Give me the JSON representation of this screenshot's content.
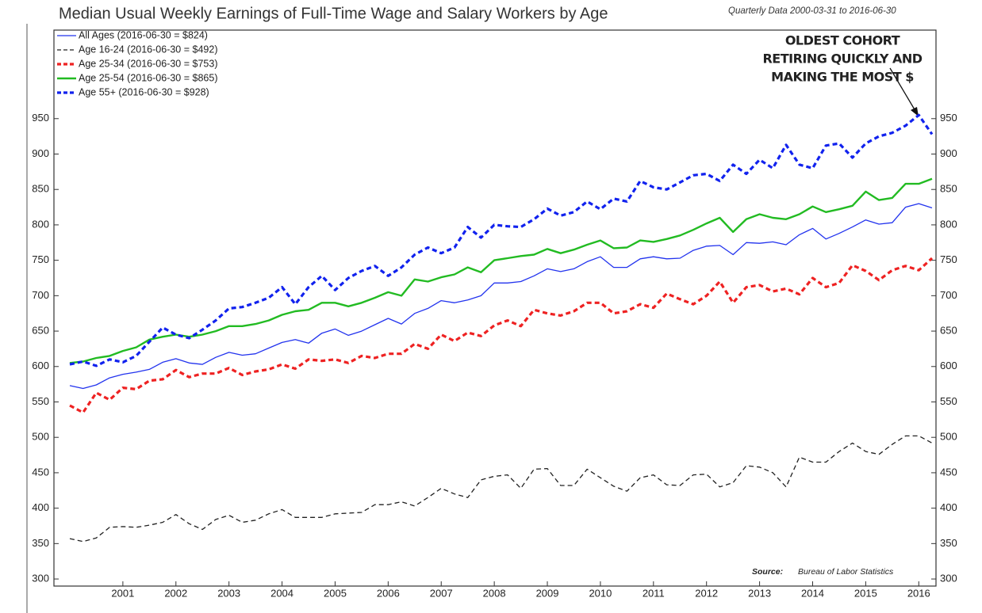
{
  "chart_data": {
    "type": "line",
    "title": "Median Usual Weekly Earnings of Full-Time Wage and Salary Workers by Age",
    "subtitle": "Quarterly Data 2000-03-31 to 2016-06-30",
    "annotation": [
      "OLDEST COHORT",
      "RETIRING QUICKLY AND",
      "MAKING THE MOST $"
    ],
    "source_label": "Source:",
    "source": "Bureau of Labor Statistics",
    "categories": [
      null,
      null,
      null,
      null,
      "2001",
      null,
      null,
      null,
      "2002",
      null,
      null,
      null,
      "2003",
      null,
      null,
      null,
      "2004",
      null,
      null,
      null,
      "2005",
      null,
      null,
      null,
      "2006",
      null,
      null,
      null,
      "2007",
      null,
      null,
      null,
      "2008",
      null,
      null,
      null,
      "2009",
      null,
      null,
      null,
      "2010",
      null,
      null,
      null,
      "2011",
      null,
      null,
      null,
      "2012",
      null,
      null,
      null,
      "2013",
      null,
      null,
      null,
      "2014",
      null,
      null,
      null,
      "2015",
      null,
      null,
      null,
      "2016",
      null
    ],
    "ylim": [
      290,
      1075
    ],
    "yticks": [
      300,
      350,
      400,
      450,
      500,
      550,
      600,
      650,
      700,
      750,
      800,
      850,
      900,
      950
    ],
    "series": [
      {
        "name": "All Ages (2016-06-30 = $824)",
        "color": "#2233ee",
        "line_style": "thin",
        "values": [
          573,
          569,
          574,
          584,
          589,
          592,
          596,
          606,
          611,
          605,
          603,
          613,
          620,
          616,
          618,
          626,
          634,
          638,
          633,
          647,
          653,
          644,
          650,
          659,
          668,
          660,
          675,
          682,
          693,
          690,
          694,
          700,
          718,
          718,
          720,
          728,
          738,
          734,
          738,
          748,
          755,
          740,
          740,
          752,
          755,
          752,
          753,
          764,
          770,
          771,
          758,
          775,
          774,
          776,
          772,
          786,
          795,
          780,
          788,
          797,
          807,
          801,
          803,
          825,
          830,
          824
        ]
      },
      {
        "name": "Age 16-24 (2016-06-30 = $492)",
        "color": "#222222",
        "line_style": "thin-dashed",
        "values": [
          357,
          353,
          358,
          373,
          374,
          373,
          376,
          380,
          391,
          378,
          370,
          384,
          390,
          380,
          383,
          392,
          398,
          387,
          387,
          387,
          392,
          393,
          394,
          405,
          405,
          409,
          403,
          415,
          428,
          420,
          415,
          440,
          445,
          447,
          428,
          455,
          456,
          432,
          432,
          455,
          443,
          431,
          424,
          443,
          447,
          433,
          432,
          447,
          448,
          430,
          436,
          460,
          458,
          450,
          430,
          472,
          465,
          465,
          480,
          492,
          480,
          476,
          490,
          502,
          502,
          492
        ]
      },
      {
        "name": "Age 25-34 (2016-06-30 = $753)",
        "color": "#ee2222",
        "line_style": "thick-dashed",
        "values": [
          545,
          535,
          563,
          553,
          570,
          568,
          580,
          582,
          595,
          585,
          590,
          590,
          598,
          588,
          593,
          596,
          603,
          597,
          610,
          608,
          610,
          605,
          615,
          612,
          618,
          618,
          632,
          625,
          645,
          636,
          648,
          643,
          658,
          665,
          657,
          680,
          675,
          672,
          678,
          690,
          690,
          675,
          678,
          688,
          683,
          703,
          695,
          688,
          700,
          720,
          690,
          712,
          715,
          706,
          710,
          702,
          725,
          712,
          718,
          743,
          735,
          722,
          736,
          742,
          736,
          753
        ]
      },
      {
        "name": "Age 25-54 (2016-06-30 = $865)",
        "color": "#22bb22",
        "line_style": "thick",
        "values": [
          605,
          607,
          612,
          615,
          622,
          627,
          638,
          642,
          645,
          642,
          645,
          650,
          657,
          657,
          660,
          665,
          673,
          678,
          680,
          690,
          690,
          685,
          690,
          697,
          705,
          700,
          723,
          720,
          726,
          730,
          740,
          733,
          750,
          753,
          756,
          758,
          766,
          760,
          765,
          772,
          778,
          767,
          768,
          778,
          776,
          780,
          785,
          793,
          802,
          810,
          790,
          808,
          815,
          810,
          808,
          815,
          826,
          818,
          822,
          827,
          847,
          835,
          838,
          858,
          858,
          865
        ]
      },
      {
        "name": "Age 55+ (2016-06-30 = $928)",
        "color": "#1122ee",
        "line_style": "thick-dashed",
        "values": [
          603,
          607,
          601,
          610,
          606,
          615,
          635,
          655,
          645,
          640,
          652,
          665,
          682,
          684,
          690,
          697,
          712,
          688,
          712,
          728,
          708,
          725,
          735,
          742,
          728,
          740,
          758,
          768,
          760,
          768,
          797,
          782,
          800,
          798,
          797,
          808,
          823,
          813,
          818,
          833,
          822,
          837,
          833,
          862,
          853,
          850,
          860,
          870,
          872,
          862,
          885,
          872,
          892,
          880,
          913,
          885,
          880,
          912,
          915,
          895,
          915,
          925,
          930,
          940,
          955,
          928
        ]
      }
    ]
  }
}
